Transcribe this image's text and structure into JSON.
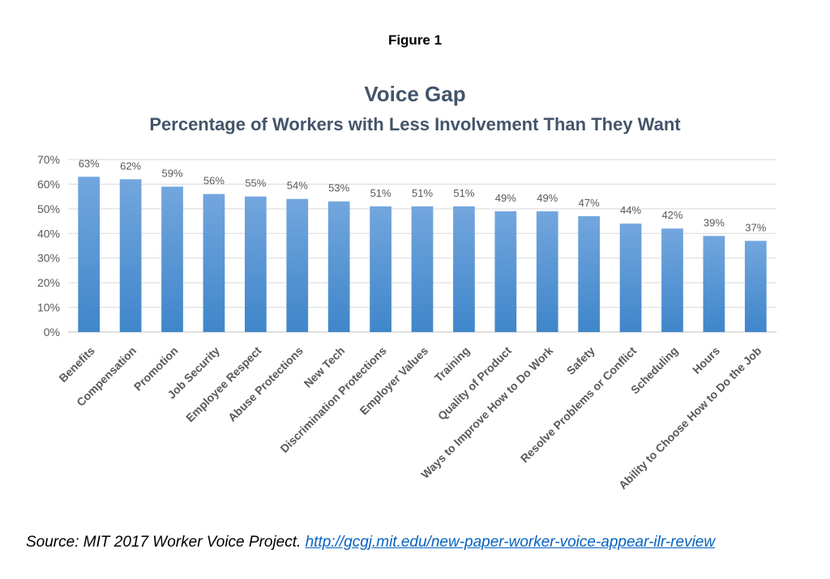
{
  "figure_label": "Figure 1",
  "source": {
    "text": "Source: MIT 2017 Worker Voice Project.",
    "link": "http://gcgj.mit.edu/new-paper-worker-voice-appear-ilr-review"
  },
  "colors": {
    "bar_top": "#73A6DE",
    "bar_bottom": "#3F86CA",
    "title": "#44546A",
    "grid": "#D9D9D9",
    "text": "#595959"
  },
  "chart_data": {
    "type": "bar",
    "title": "Voice Gap",
    "subtitle": "Percentage of Workers with Less Involvement Than They Want",
    "xlabel": "",
    "ylabel": "",
    "ylim": [
      0,
      70
    ],
    "yticks": [
      "0%",
      "10%",
      "20%",
      "30%",
      "40%",
      "50%",
      "60%",
      "70%"
    ],
    "grid": true,
    "legend": "none",
    "categories": [
      "Benefits",
      "Compensation",
      "Promotion",
      "Job Security",
      "Employee Respect",
      "Abuse Protections",
      "New Tech",
      "Discrimination Protections",
      "Employer Values",
      "Training",
      "Quality of Product",
      "Ways to Improve How to Do Work",
      "Safety",
      "Resolve Problems or Conflict",
      "Scheduling",
      "Hours",
      "Ability to Choose How to Do the Job"
    ],
    "values": [
      63,
      62,
      59,
      56,
      55,
      54,
      53,
      51,
      51,
      51,
      49,
      49,
      47,
      44,
      42,
      39,
      37
    ],
    "data_labels": [
      "63%",
      "62%",
      "59%",
      "56%",
      "55%",
      "54%",
      "53%",
      "51%",
      "51%",
      "51%",
      "49%",
      "49%",
      "47%",
      "44%",
      "42%",
      "39%",
      "37%"
    ]
  }
}
